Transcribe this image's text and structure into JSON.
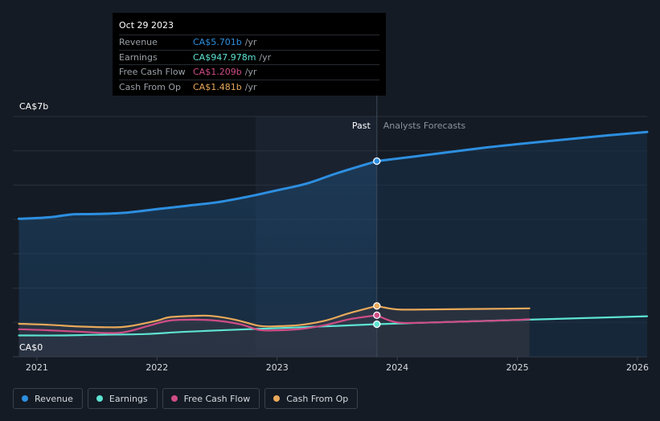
{
  "colors": {
    "revenue": "#2d8fe0",
    "earnings": "#5de3d2",
    "free_cash_flow": "#cf4d86",
    "cash_from_op": "#e8a95a",
    "background": "#151b24",
    "grid": "#2b313b"
  },
  "tooltip": {
    "date": "Oct 29 2023",
    "rows": [
      {
        "label": "Revenue",
        "value": "CA$5.701b",
        "unit": "/yr",
        "color": "#2d8fe0"
      },
      {
        "label": "Earnings",
        "value": "CA$947.978m",
        "unit": "/yr",
        "color": "#5de3d2"
      },
      {
        "label": "Free Cash Flow",
        "value": "CA$1.209b",
        "unit": "/yr",
        "color": "#cf4d86"
      },
      {
        "label": "Cash From Op",
        "value": "CA$1.481b",
        "unit": "/yr",
        "color": "#e8a95a"
      }
    ]
  },
  "legend": [
    {
      "label": "Revenue",
      "color": "#2d8fe0",
      "icon": "revenue-dot-icon"
    },
    {
      "label": "Earnings",
      "color": "#5de3d2",
      "icon": "earnings-dot-icon"
    },
    {
      "label": "Free Cash Flow",
      "color": "#cf4d86",
      "icon": "free-cash-flow-dot-icon"
    },
    {
      "label": "Cash From Op",
      "color": "#e8a95a",
      "icon": "cash-from-op-dot-icon"
    }
  ],
  "chart_data": {
    "type": "line",
    "y_unit_label_top": "CA$7b",
    "y_unit_label_bottom": "CA$0",
    "ylim": [
      0,
      7
    ],
    "xlim": [
      2020.8,
      2026.08
    ],
    "x_ticks": [
      {
        "value": 2021,
        "label": "2021"
      },
      {
        "value": 2022,
        "label": "2022"
      },
      {
        "value": 2023,
        "label": "2023"
      },
      {
        "value": 2024,
        "label": "2024"
      },
      {
        "value": 2025,
        "label": "2025"
      },
      {
        "value": 2026,
        "label": "2026"
      }
    ],
    "past_label": "Past",
    "forecast_label": "Analysts Forecasts",
    "divider_x": 2023.83,
    "grid": true,
    "legend_position": "bottom-left",
    "series": [
      {
        "name": "Revenue",
        "key": "revenue",
        "past": [
          [
            2020.85,
            4.02
          ],
          [
            2021.0,
            4.04
          ],
          [
            2021.15,
            4.08
          ],
          [
            2021.3,
            4.15
          ],
          [
            2021.5,
            4.16
          ],
          [
            2021.75,
            4.2
          ],
          [
            2022.0,
            4.3
          ],
          [
            2022.25,
            4.4
          ],
          [
            2022.5,
            4.5
          ],
          [
            2022.75,
            4.66
          ],
          [
            2023.0,
            4.85
          ],
          [
            2023.25,
            5.05
          ],
          [
            2023.5,
            5.35
          ],
          [
            2023.83,
            5.701
          ]
        ],
        "forecast": [
          [
            2023.83,
            5.701
          ],
          [
            2024.25,
            5.88
          ],
          [
            2024.75,
            6.1
          ],
          [
            2025.25,
            6.28
          ],
          [
            2025.75,
            6.45
          ],
          [
            2026.08,
            6.55
          ]
        ]
      },
      {
        "name": "Earnings",
        "key": "earnings",
        "past": [
          [
            2020.85,
            0.62
          ],
          [
            2021.2,
            0.62
          ],
          [
            2021.5,
            0.64
          ],
          [
            2021.9,
            0.66
          ],
          [
            2022.2,
            0.72
          ],
          [
            2022.6,
            0.78
          ],
          [
            2022.9,
            0.82
          ],
          [
            2023.2,
            0.86
          ],
          [
            2023.5,
            0.9
          ],
          [
            2023.83,
            0.948
          ]
        ],
        "forecast": [
          [
            2023.83,
            0.948
          ],
          [
            2024.3,
            1.0
          ],
          [
            2024.8,
            1.05
          ],
          [
            2025.3,
            1.1
          ],
          [
            2025.8,
            1.15
          ],
          [
            2026.08,
            1.18
          ]
        ]
      },
      {
        "name": "Free Cash Flow",
        "key": "free_cash_flow",
        "past": [
          [
            2020.85,
            0.8
          ],
          [
            2021.1,
            0.77
          ],
          [
            2021.4,
            0.72
          ],
          [
            2021.6,
            0.69
          ],
          [
            2021.75,
            0.73
          ],
          [
            2021.95,
            0.92
          ],
          [
            2022.1,
            1.05
          ],
          [
            2022.3,
            1.08
          ],
          [
            2022.5,
            1.05
          ],
          [
            2022.7,
            0.94
          ],
          [
            2022.85,
            0.78
          ],
          [
            2023.0,
            0.77
          ],
          [
            2023.2,
            0.81
          ],
          [
            2023.4,
            0.92
          ],
          [
            2023.6,
            1.09
          ],
          [
            2023.83,
            1.209
          ]
        ],
        "forecast": [
          [
            2023.83,
            1.209
          ],
          [
            2024.0,
            1.0
          ],
          [
            2024.3,
            1.0
          ],
          [
            2024.6,
            1.03
          ],
          [
            2024.9,
            1.06
          ],
          [
            2025.1,
            1.09
          ]
        ]
      },
      {
        "name": "Cash From Op",
        "key": "cash_from_op",
        "past": [
          [
            2020.85,
            0.96
          ],
          [
            2021.1,
            0.93
          ],
          [
            2021.35,
            0.88
          ],
          [
            2021.6,
            0.86
          ],
          [
            2021.75,
            0.88
          ],
          [
            2022.0,
            1.05
          ],
          [
            2022.1,
            1.15
          ],
          [
            2022.3,
            1.19
          ],
          [
            2022.45,
            1.19
          ],
          [
            2022.65,
            1.08
          ],
          [
            2022.85,
            0.9
          ],
          [
            2023.0,
            0.89
          ],
          [
            2023.2,
            0.93
          ],
          [
            2023.4,
            1.05
          ],
          [
            2023.6,
            1.27
          ],
          [
            2023.83,
            1.481
          ]
        ],
        "forecast": [
          [
            2023.83,
            1.481
          ],
          [
            2024.0,
            1.38
          ],
          [
            2024.3,
            1.38
          ],
          [
            2024.6,
            1.39
          ],
          [
            2024.9,
            1.4
          ],
          [
            2025.1,
            1.41
          ]
        ]
      }
    ]
  }
}
